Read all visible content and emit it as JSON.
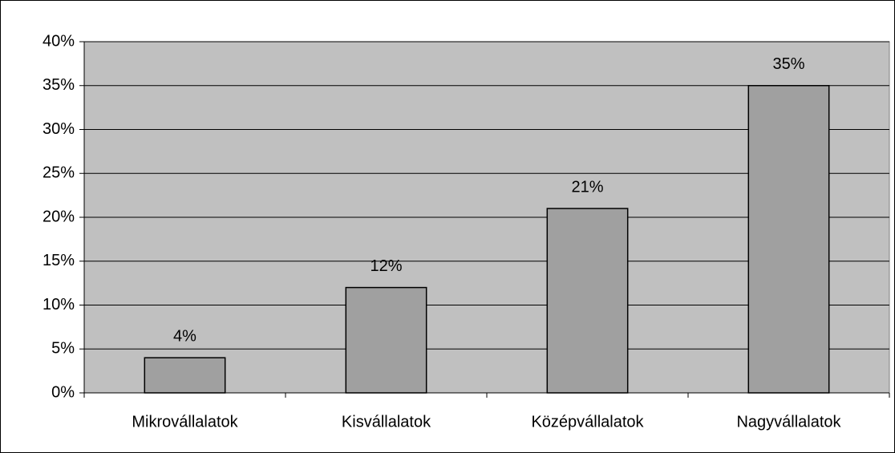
{
  "chart_data": {
    "type": "bar",
    "categories": [
      "Mikrovállalatok",
      "Kisvállalatok",
      "Középvállalatok",
      "Nagyvállalatok"
    ],
    "values": [
      4,
      12,
      21,
      35
    ],
    "value_labels": [
      "4%",
      "12%",
      "21%",
      "35%"
    ],
    "color": "#a0a0a0",
    "ylim": [
      0,
      40
    ],
    "yticks": [
      {
        "value": 0,
        "label": "0%"
      },
      {
        "value": 5,
        "label": "5%"
      },
      {
        "value": 10,
        "label": "10%"
      },
      {
        "value": 15,
        "label": "15%"
      },
      {
        "value": 20,
        "label": "20%"
      },
      {
        "value": 25,
        "label": "25%"
      },
      {
        "value": 30,
        "label": "30%"
      },
      {
        "value": 35,
        "label": "35%"
      },
      {
        "value": 40,
        "label": "40%"
      }
    ],
    "grid": true
  }
}
